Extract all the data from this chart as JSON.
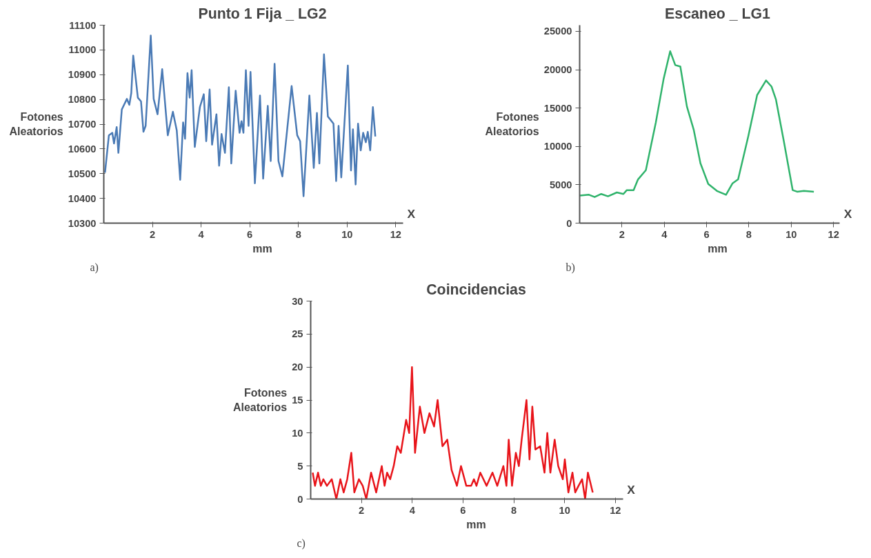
{
  "chart_data": [
    {
      "type": "line",
      "title": "Punto 1 Fija _ LG2",
      "xlabel": "mm",
      "ylabel": "Fotones\nAleatorios",
      "annotations": [
        "X",
        "a)"
      ],
      "xlim": [
        0,
        12.3
      ],
      "xticks": [
        2,
        4,
        6,
        8,
        10,
        12
      ],
      "ylim": [
        10300,
        11100
      ],
      "yticks": [
        10300,
        10400,
        10500,
        10600,
        10700,
        10800,
        10900,
        11000,
        11100
      ],
      "grid": false,
      "series": [
        {
          "color": "#4a7ab5",
          "x": [
            0.05,
            0.21,
            0.35,
            0.42,
            0.53,
            0.6,
            0.74,
            0.95,
            1.05,
            1.13,
            1.21,
            1.4,
            1.53,
            1.63,
            1.72,
            1.93,
            2.05,
            2.21,
            2.4,
            2.63,
            2.84,
            3.0,
            3.14,
            3.26,
            3.34,
            3.44,
            3.53,
            3.61,
            3.74,
            3.95,
            4.11,
            4.21,
            4.35,
            4.45,
            4.63,
            4.74,
            4.84,
            4.98,
            5.14,
            5.24,
            5.42,
            5.58,
            5.66,
            5.74,
            5.84,
            5.95,
            6.03,
            6.21,
            6.42,
            6.55,
            6.74,
            6.86,
            7.02,
            7.18,
            7.34,
            7.72,
            7.95,
            8.07,
            8.21,
            8.45,
            8.63,
            8.76,
            8.86,
            9.05,
            9.21,
            9.44,
            9.55,
            9.65,
            9.76,
            10.03,
            10.16,
            10.24,
            10.35,
            10.45,
            10.56,
            10.66,
            10.77,
            10.85,
            10.95,
            11.06,
            11.16
          ],
          "values": [
            10504,
            10655,
            10665,
            10622,
            10688,
            10584,
            10759,
            10802,
            10778,
            10826,
            10977,
            10807,
            10792,
            10669,
            10693,
            11058,
            10802,
            10740,
            10922,
            10655,
            10750,
            10674,
            10475,
            10707,
            10641,
            10906,
            10807,
            10918,
            10608,
            10769,
            10821,
            10631,
            10840,
            10617,
            10740,
            10532,
            10660,
            10584,
            10849,
            10541,
            10835,
            10665,
            10712,
            10665,
            10918,
            10693,
            10911,
            10461,
            10816,
            10480,
            10774,
            10551,
            10944,
            10551,
            10489,
            10854,
            10655,
            10631,
            10409,
            10816,
            10523,
            10745,
            10541,
            10982,
            10731,
            10702,
            10470,
            10693,
            10485,
            10937,
            10513,
            10679,
            10456,
            10702,
            10594,
            10665,
            10627,
            10669,
            10594,
            10769,
            10650
          ]
        }
      ]
    },
    {
      "type": "line",
      "title": "Escaneo _ LG1",
      "xlabel": "mm",
      "ylabel": "Fotones\nAleatorios",
      "annotations": [
        "X",
        "b)"
      ],
      "xlim": [
        0,
        12.3
      ],
      "xticks": [
        2,
        4,
        6,
        8,
        10,
        12
      ],
      "ylim": [
        0,
        25800
      ],
      "yticks": [
        0,
        5000,
        10000,
        15000,
        20000,
        25000
      ],
      "grid": false,
      "series": [
        {
          "color": "#2fb36b",
          "x": [
            0.02,
            0.44,
            0.71,
            1.02,
            1.34,
            1.76,
            2.07,
            2.23,
            2.55,
            2.76,
            3.13,
            3.6,
            3.97,
            4.28,
            4.52,
            4.76,
            5.07,
            5.39,
            5.71,
            6.08,
            6.49,
            6.92,
            7.23,
            7.49,
            7.97,
            8.39,
            8.81,
            9.07,
            9.28,
            9.65,
            10.07,
            10.28,
            10.6,
            11.07
          ],
          "values": [
            3600,
            3700,
            3400,
            3800,
            3500,
            4000,
            3800,
            4300,
            4300,
            5700,
            6900,
            13100,
            18800,
            22400,
            20600,
            20400,
            15200,
            12200,
            7800,
            5100,
            4200,
            3700,
            5200,
            5700,
            11300,
            16700,
            18600,
            17800,
            16100,
            10700,
            4300,
            4100,
            4200,
            4100
          ]
        }
      ]
    },
    {
      "type": "line",
      "title": "Coincidencias",
      "xlabel": "mm",
      "ylabel": "Fotones\nAleatorios",
      "annotations": [
        "X",
        "c)"
      ],
      "xlim": [
        0,
        12.3
      ],
      "xticks": [
        2,
        4,
        6,
        8,
        10,
        12
      ],
      "ylim": [
        0,
        30
      ],
      "yticks": [
        0,
        5,
        10,
        15,
        20,
        25,
        30
      ],
      "grid": false,
      "series": [
        {
          "color": "#e8141a",
          "x": [
            0.08,
            0.17,
            0.29,
            0.4,
            0.5,
            0.64,
            0.83,
            1.01,
            1.17,
            1.3,
            1.44,
            1.6,
            1.72,
            1.9,
            2.05,
            2.19,
            2.38,
            2.58,
            2.8,
            2.91,
            3.01,
            3.13,
            3.27,
            3.41,
            3.55,
            3.76,
            3.88,
            3.99,
            4.11,
            4.3,
            4.48,
            4.68,
            4.86,
            5.0,
            5.19,
            5.38,
            5.55,
            5.76,
            5.92,
            6.13,
            6.32,
            6.43,
            6.53,
            6.68,
            6.93,
            7.16,
            7.35,
            7.59,
            7.71,
            7.8,
            7.93,
            8.08,
            8.2,
            8.31,
            8.5,
            8.62,
            8.73,
            8.85,
            9.04,
            9.21,
            9.32,
            9.44,
            9.61,
            9.75,
            9.93,
            10.01,
            10.15,
            10.31,
            10.42,
            10.55,
            10.69,
            10.81,
            10.92,
            11.11
          ],
          "values": [
            4,
            2,
            4,
            2,
            3,
            2,
            3,
            0,
            3,
            1,
            3,
            7,
            1,
            3,
            2,
            0,
            4,
            1,
            5,
            2,
            4,
            3,
            5,
            8,
            7,
            12,
            10,
            20,
            7,
            14,
            10,
            13,
            11,
            15,
            8,
            9,
            4.4,
            2,
            5,
            2,
            2,
            3,
            2,
            4,
            2,
            4,
            2,
            5,
            2,
            9,
            2,
            7,
            5,
            9,
            15,
            6,
            14,
            7.5,
            8,
            4,
            10,
            4,
            9,
            5,
            3,
            6,
            1,
            4,
            1,
            2,
            3,
            0,
            4,
            1
          ]
        }
      ]
    }
  ]
}
